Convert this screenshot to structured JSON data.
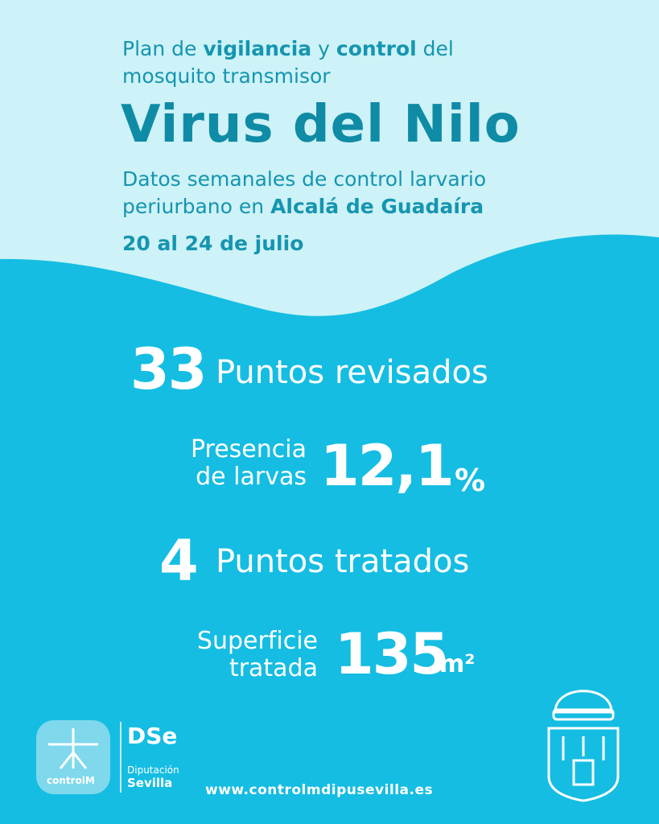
{
  "header": {
    "intro_parts": [
      "Plan de",
      "vigilancia",
      "y",
      "control",
      "del"
    ],
    "intro_line2": "mosquito transmisor",
    "title": "Virus del Nilo",
    "subtitle_line1": "Datos semanales de control larvario",
    "subtitle_line2": "periurbano en",
    "place": "Alcalá de Guadaíra",
    "date": "20 al 24 de julio"
  },
  "stats": [
    {
      "value": "33",
      "label": "Puntos revisados"
    },
    {
      "label_lines": [
        "Presencia",
        "de larvas"
      ],
      "value": "12,1",
      "unit": "%"
    },
    {
      "value": "4",
      "label": "Puntos tratados"
    },
    {
      "label_lines": [
        "Superficie",
        "tratada"
      ],
      "value": "135",
      "unit": "m²"
    }
  ],
  "footer": {
    "controlm": "controlM",
    "dse_logo": "DSe",
    "dip_line1": "Diputación",
    "dip_line2": "Sevilla",
    "url": "www.controlmdipusevilla.es"
  }
}
